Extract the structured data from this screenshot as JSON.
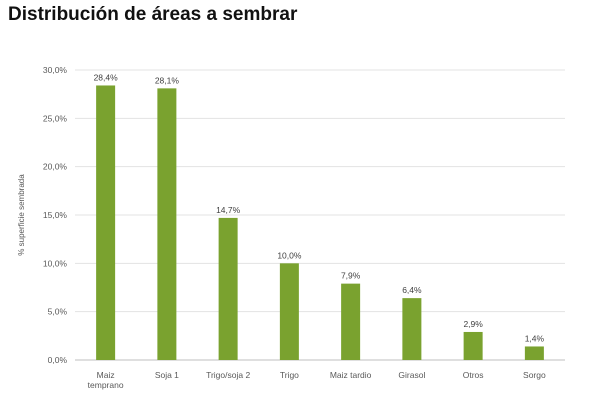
{
  "chart_data": {
    "type": "bar",
    "title": "Distribución de áreas a sembrar",
    "ylabel": "% superficie sembrada",
    "xlabel": "",
    "ylim": [
      0,
      30
    ],
    "grid": true,
    "bar_color": "#7aa22f",
    "categories": [
      [
        "Maiz",
        "temprano"
      ],
      [
        "Soja 1"
      ],
      [
        "Trigo/soja 2"
      ],
      [
        "Trigo"
      ],
      [
        "Maiz tardio"
      ],
      [
        "Girasol"
      ],
      [
        "Otros"
      ],
      [
        "Sorgo"
      ]
    ],
    "values": [
      28.4,
      28.1,
      14.7,
      10.0,
      7.9,
      6.4,
      2.9,
      1.4
    ],
    "value_labels": [
      "28,4%",
      "28,1%",
      "14,7%",
      "10,0%",
      "7,9%",
      "6,4%",
      "2,9%",
      "1,4%"
    ],
    "yticks": [
      0,
      5,
      10,
      15,
      20,
      25,
      30
    ],
    "ytick_labels": [
      "0,0%",
      "5,0%",
      "10,0%",
      "15,0%",
      "20,0%",
      "25,0%",
      "30,0%"
    ]
  }
}
